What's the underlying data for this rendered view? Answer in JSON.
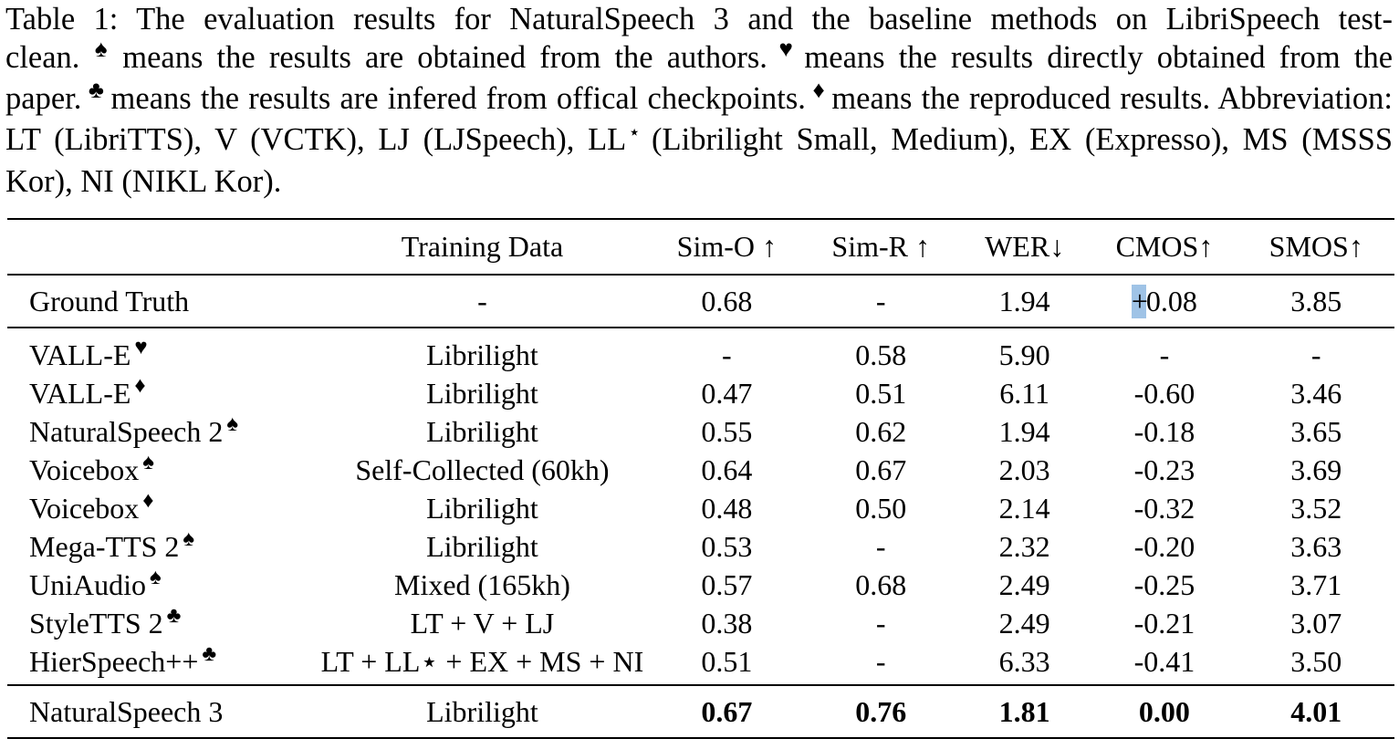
{
  "caption": {
    "part1": "Table 1: The evaluation results for NaturalSpeech 3 and the baseline methods on LibriSpeech test-clean.",
    "part2": "means the results are obtained from the authors.",
    "part3": "means the results directly obtained from the paper.",
    "part4": "means the results are infered from offical checkpoints.",
    "part5": "means the reproduced results. Abbreviation: LT (LibriTTS), V (VCTK), LJ (LJSpeech), LL",
    "part6": "(Librilight Small, Medium), EX (Expresso), MS (MSSS Kor), NI (NIKL Kor).",
    "spade": "♠",
    "heart": "♥",
    "club": "♣",
    "diamond": "♦",
    "star": "⋆"
  },
  "table": {
    "headers": {
      "model": "",
      "training_data": "Training Data",
      "sim_o": "Sim-O ↑",
      "sim_r": "Sim-R ↑",
      "wer": "WER↓",
      "cmos": "CMOS↑",
      "smos": "SMOS↑"
    },
    "ground_truth": {
      "model": "Ground Truth",
      "training_data": "-",
      "sim_o": "0.68",
      "sim_r": "-",
      "wer": "1.94",
      "cmos_sign": "+",
      "cmos": "0.08",
      "smos": "3.85"
    },
    "baselines": [
      {
        "model": "VALL-E",
        "mark": "♥",
        "training_data": "Librilight",
        "sim_o": "-",
        "sim_r": "0.58",
        "wer": "5.90",
        "cmos": "-",
        "smos": "-"
      },
      {
        "model": "VALL-E",
        "mark": "♦",
        "training_data": "Librilight",
        "sim_o": "0.47",
        "sim_r": "0.51",
        "wer": "6.11",
        "cmos": "-0.60",
        "smos": "3.46"
      },
      {
        "model": "NaturalSpeech 2",
        "mark": "♠",
        "training_data": "Librilight",
        "sim_o": "0.55",
        "sim_r": "0.62",
        "wer": "1.94",
        "cmos": "-0.18",
        "smos": "3.65"
      },
      {
        "model": "Voicebox",
        "mark": "♠",
        "training_data": "Self-Collected (60kh)",
        "sim_o": "0.64",
        "sim_r": "0.67",
        "wer": "2.03",
        "cmos": "-0.23",
        "smos": "3.69"
      },
      {
        "model": "Voicebox",
        "mark": "♦",
        "training_data": "Librilight",
        "sim_o": "0.48",
        "sim_r": "0.50",
        "wer": "2.14",
        "cmos": "-0.32",
        "smos": "3.52"
      },
      {
        "model": "Mega-TTS 2",
        "mark": "♠",
        "training_data": "Librilight",
        "sim_o": "0.53",
        "sim_r": "-",
        "wer": "2.32",
        "cmos": "-0.20",
        "smos": "3.63"
      },
      {
        "model": "UniAudio",
        "mark": "♠",
        "training_data": "Mixed (165kh)",
        "sim_o": "0.57",
        "sim_r": "0.68",
        "wer": "2.49",
        "cmos": "-0.25",
        "smos": "3.71"
      },
      {
        "model": "StyleTTS 2",
        "mark": "♣",
        "training_data": "LT + V + LJ",
        "sim_o": "0.38",
        "sim_r": "-",
        "wer": "2.49",
        "cmos": "-0.21",
        "smos": "3.07"
      },
      {
        "model": "HierSpeech++",
        "mark": "♣",
        "training_data": "LT + LL⋆ + EX + MS + NI",
        "sim_o": "0.51",
        "sim_r": "-",
        "wer": "6.33",
        "cmos": "-0.41",
        "smos": "3.50"
      }
    ],
    "ours": {
      "model": "NaturalSpeech 3",
      "training_data": "Librilight",
      "sim_o": "0.67",
      "sim_r": "0.76",
      "wer": "1.81",
      "cmos": "0.00",
      "smos": "4.01"
    }
  }
}
